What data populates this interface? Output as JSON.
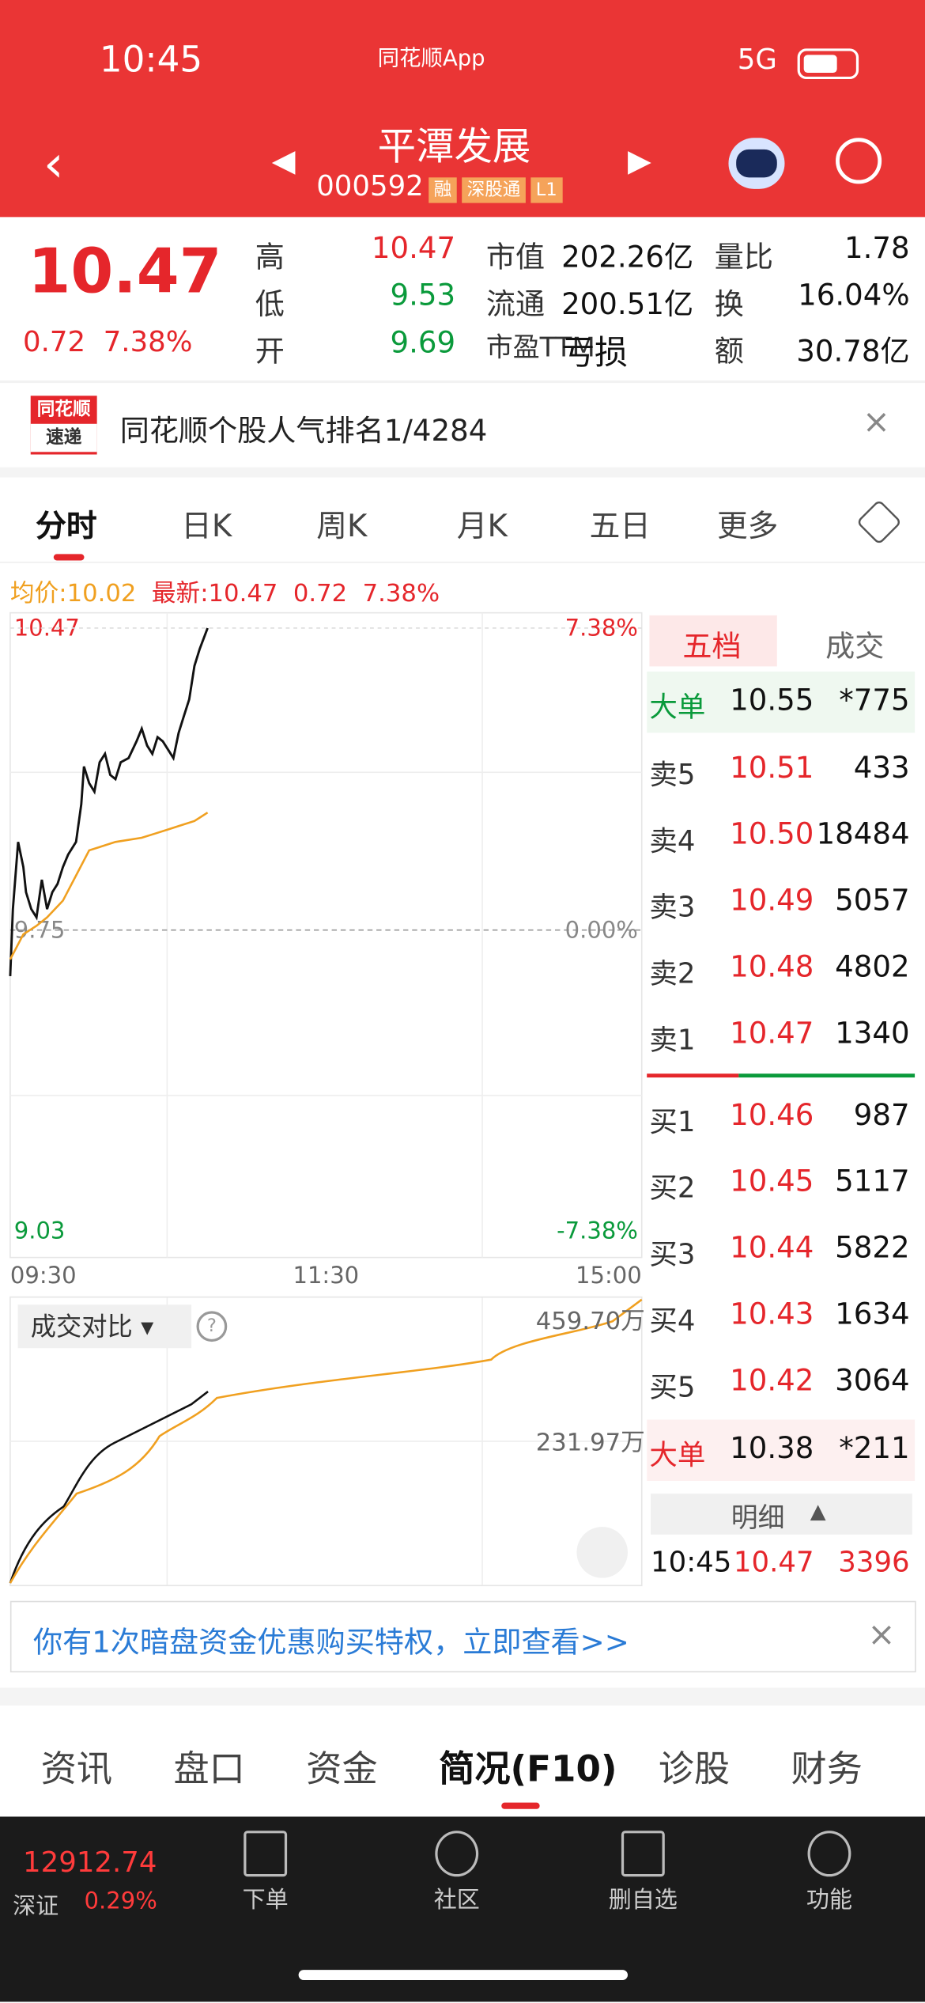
{
  "status": {
    "time": "10:45",
    "app": "同花顺App",
    "network": "5G"
  },
  "header": {
    "name": "平潭发展",
    "code": "000592",
    "tags": [
      "融",
      "深股通",
      "L1"
    ]
  },
  "quote": {
    "price": "10.47",
    "change": "0.72",
    "pct": "7.38%",
    "stats": [
      [
        "高",
        "10.47",
        "市值",
        "202.26亿",
        "量比",
        "1.78"
      ],
      [
        "低",
        "9.53",
        "流通",
        "200.51亿",
        "换",
        "16.04%"
      ],
      [
        "开",
        "9.69",
        "市盈TTM",
        "亏损",
        "额",
        "30.78亿"
      ]
    ]
  },
  "banner": {
    "logo": [
      "同花顺",
      "速递"
    ],
    "text": "同花顺个股人气排名1/4284"
  },
  "tabs": [
    "分时",
    "日K",
    "周K",
    "月K",
    "五日",
    "更多"
  ],
  "legend": {
    "avg_label": "均价:",
    "avg": "10.02",
    "latest_label": "最新:",
    "latest": "10.47",
    "change": "0.72",
    "pct": "7.38%"
  },
  "chart_data": {
    "type": "line",
    "xlim": [
      0,
      240
    ],
    "xticks": [
      {
        "value": 0,
        "label": "09:30"
      },
      {
        "value": 120,
        "label": "11:30"
      },
      {
        "value": 240,
        "label": "15:00"
      }
    ],
    "ylim": [
      9.03,
      10.47
    ],
    "yticks": [
      10.47,
      9.75,
      9.03
    ],
    "y2lim": [
      -7.38,
      7.38
    ],
    "y2ticks": [
      {
        "value": 7.38,
        "label": "7.38%"
      },
      {
        "value": 0,
        "label": "0.00%"
      },
      {
        "value": -7.38,
        "label": "-7.38%"
      }
    ],
    "series": [
      {
        "name": "最新",
        "color": "#111111",
        "x": [
          0,
          1,
          3,
          5,
          6,
          8,
          10,
          12,
          14,
          16,
          18,
          20,
          22,
          25,
          27,
          28,
          30,
          32,
          34,
          36,
          38,
          40,
          42,
          45,
          48,
          50,
          52,
          54,
          56,
          58,
          60,
          62,
          64,
          66,
          68,
          70,
          72,
          75
        ],
        "values": [
          9.64,
          9.8,
          9.96,
          9.9,
          9.84,
          9.8,
          9.78,
          9.87,
          9.8,
          9.84,
          9.86,
          9.9,
          9.93,
          9.96,
          10.05,
          10.14,
          10.1,
          10.08,
          10.15,
          10.17,
          10.12,
          10.11,
          10.15,
          10.16,
          10.2,
          10.23,
          10.19,
          10.17,
          10.21,
          10.2,
          10.18,
          10.16,
          10.22,
          10.26,
          10.3,
          10.38,
          10.42,
          10.47
        ]
      },
      {
        "name": "均价",
        "color": "#f0a020",
        "x": [
          0,
          5,
          10,
          14,
          20,
          25,
          30,
          35,
          40,
          50,
          55,
          60,
          65,
          70,
          75
        ],
        "values": [
          9.68,
          9.74,
          9.76,
          9.78,
          9.82,
          9.88,
          9.94,
          9.95,
          9.96,
          9.97,
          9.98,
          9.99,
          10.0,
          10.01,
          10.03
        ]
      }
    ]
  },
  "volume": {
    "label": "成交对比",
    "high": "459.70万",
    "mid": "231.97万"
  },
  "book": {
    "tabs": [
      "五档",
      "成交"
    ],
    "big_sell": [
      "大单",
      "10.55",
      "*775"
    ],
    "asks": [
      [
        "卖5",
        "10.51",
        "433"
      ],
      [
        "卖4",
        "10.50",
        "18484"
      ],
      [
        "卖3",
        "10.49",
        "5057"
      ],
      [
        "卖2",
        "10.48",
        "4802"
      ],
      [
        "卖1",
        "10.47",
        "1340"
      ]
    ],
    "bids": [
      [
        "买1",
        "10.46",
        "987"
      ],
      [
        "买2",
        "10.45",
        "5117"
      ],
      [
        "买3",
        "10.44",
        "5822"
      ],
      [
        "买4",
        "10.43",
        "1634"
      ],
      [
        "买5",
        "10.42",
        "3064"
      ]
    ],
    "big_buy": [
      "大单",
      "10.38",
      "*211"
    ],
    "detail": "明细",
    "trade": [
      "10:45",
      "10.47",
      "3396"
    ]
  },
  "promo": "你有1次暗盘资金优惠购买特权，立即查看>>",
  "bottom_tabs": [
    "资讯",
    "盘口",
    "资金",
    "简况(F10)",
    "诊股",
    "财务"
  ],
  "footer": {
    "index": "12912.74",
    "market": "深证",
    "pct": "0.29%",
    "nav": [
      "下单",
      "社区",
      "删自选",
      "功能"
    ]
  }
}
